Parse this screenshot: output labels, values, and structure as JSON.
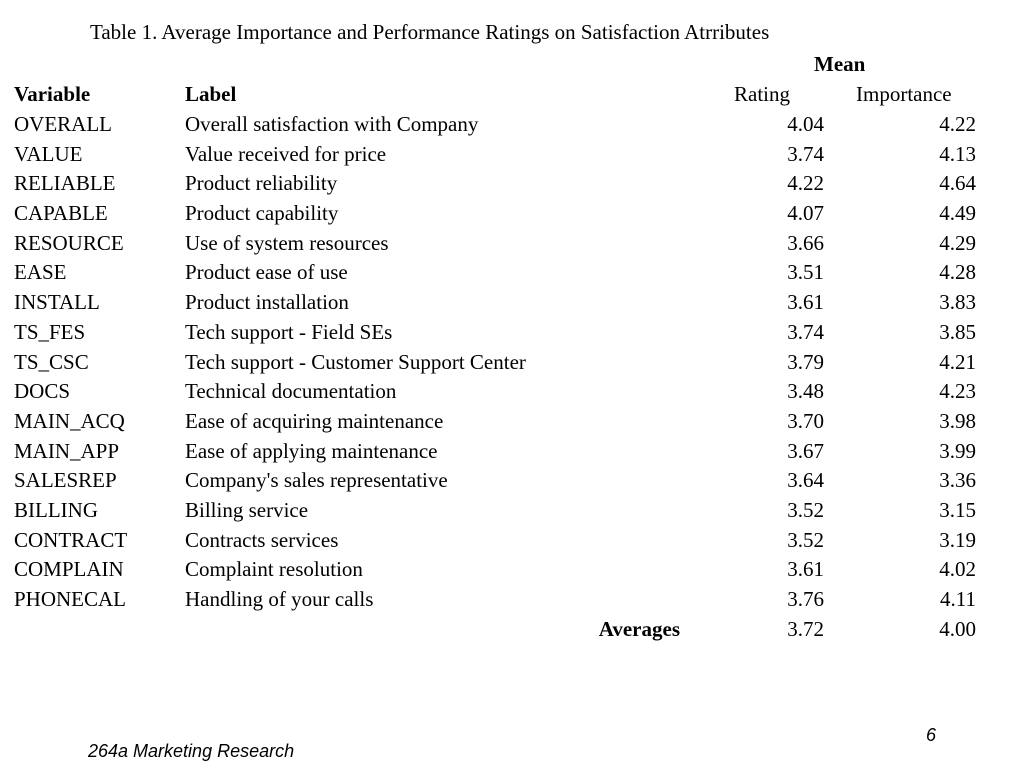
{
  "title": "Table 1.  Average Importance and Performance Ratings on Satisfaction Atrributes",
  "headers": {
    "group": "Mean",
    "variable": "Variable",
    "label": "Label",
    "rating": "Rating",
    "importance": "Importance"
  },
  "rows": [
    {
      "variable": "OVERALL",
      "label": "Overall satisfaction with Company",
      "rating": "4.04",
      "importance": "4.22"
    },
    {
      "variable": "VALUE",
      "label": "Value received for price",
      "rating": "3.74",
      "importance": "4.13"
    },
    {
      "variable": "RELIABLE",
      "label": "Product reliability",
      "rating": "4.22",
      "importance": "4.64"
    },
    {
      "variable": "CAPABLE",
      "label": "Product capability",
      "rating": "4.07",
      "importance": "4.49"
    },
    {
      "variable": "RESOURCE",
      "label": "Use of system resources",
      "rating": "3.66",
      "importance": "4.29"
    },
    {
      "variable": "EASE",
      "label": "Product ease of use",
      "rating": "3.51",
      "importance": "4.28"
    },
    {
      "variable": "INSTALL",
      "label": "Product installation",
      "rating": "3.61",
      "importance": "3.83"
    },
    {
      "variable": "TS_FES",
      "label": "Tech support - Field SEs",
      "rating": "3.74",
      "importance": "3.85"
    },
    {
      "variable": "TS_CSC",
      "label": "Tech support - Customer Support Center",
      "rating": "3.79",
      "importance": "4.21"
    },
    {
      "variable": "DOCS",
      "label": "Technical documentation",
      "rating": "3.48",
      "importance": "4.23"
    },
    {
      "variable": "MAIN_ACQ",
      "label": "Ease of acquiring maintenance",
      "rating": "3.70",
      "importance": "3.98"
    },
    {
      "variable": "MAIN_APP",
      "label": "Ease of applying maintenance",
      "rating": "3.67",
      "importance": "3.99"
    },
    {
      "variable": "SALESREP",
      "label": "Company's sales representative",
      "rating": "3.64",
      "importance": "3.36"
    },
    {
      "variable": "BILLING",
      "label": "Billing service",
      "rating": "3.52",
      "importance": "3.15"
    },
    {
      "variable": "CONTRACT",
      "label": "Contracts services",
      "rating": "3.52",
      "importance": "3.19"
    },
    {
      "variable": "COMPLAIN",
      "label": "Complaint resolution",
      "rating": "3.61",
      "importance": "4.02"
    },
    {
      "variable": "PHONECAL",
      "label": "Handling of your calls",
      "rating": "3.76",
      "importance": "4.11"
    }
  ],
  "averages": {
    "label": "Averages",
    "rating": "3.72",
    "importance": "4.00"
  },
  "footer": {
    "course": "264a Marketing Research",
    "page_number": "6"
  }
}
